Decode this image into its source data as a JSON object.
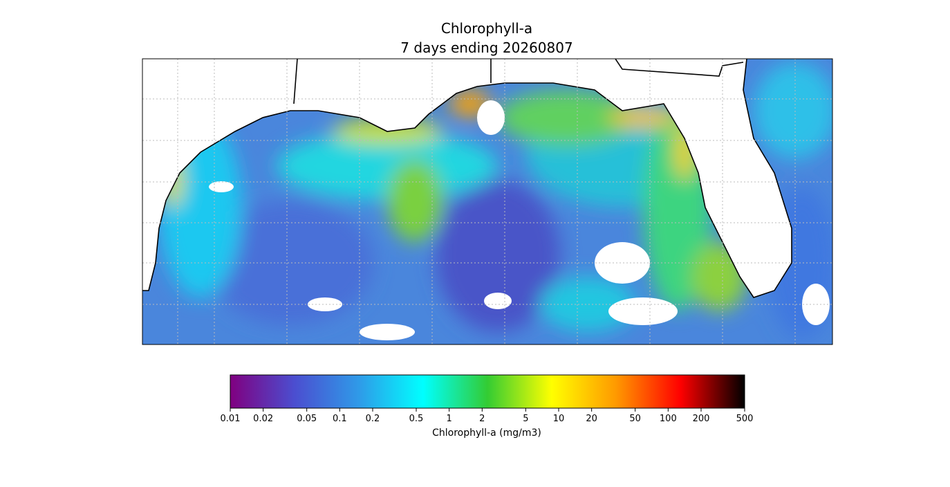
{
  "chart_data": {
    "type": "map",
    "title": "Chlorophyll-a",
    "subtitle": "7 days ending 20260807",
    "colorbar": {
      "label": "Chlorophyll-a (mg/m3)",
      "log": true,
      "lim": [
        0.01,
        500
      ],
      "ticks": [
        0.01,
        0.02,
        0.05,
        0.1,
        0.2,
        0.5,
        1,
        2,
        5,
        10,
        20,
        50,
        100,
        200,
        500
      ],
      "colors": [
        "#800080",
        "#4b4ed0",
        "#2f9ae8",
        "#00ffff",
        "#33cc33",
        "#ffff00",
        "#ff9900",
        "#ff0000",
        "#000000"
      ]
    }
  }
}
